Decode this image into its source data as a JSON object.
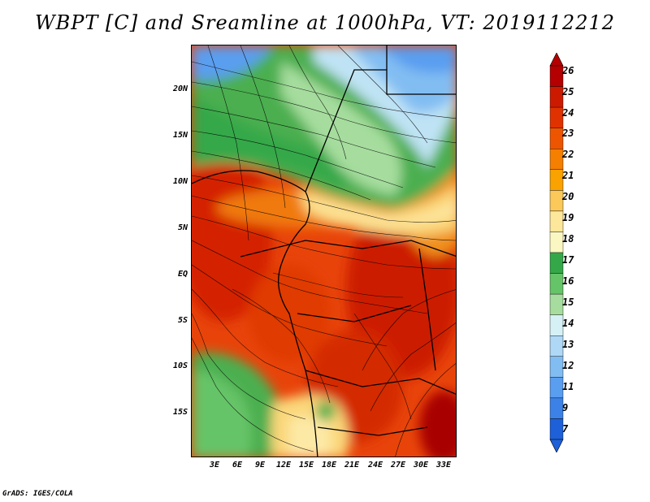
{
  "title": "WBPT [C] and Sreamline at 1000hPa, VT: 2019112212",
  "credit": "GrADS: IGES/COLA",
  "map": {
    "lat_labels": [
      "20N",
      "15N",
      "10N",
      "5N",
      "EQ",
      "5S",
      "10S",
      "15S"
    ],
    "lon_labels": [
      "3E",
      "6E",
      "9E",
      "12E",
      "15E",
      "18E",
      "21E",
      "24E",
      "27E",
      "30E",
      "33E"
    ]
  },
  "colorbar": {
    "labels": [
      "26",
      "25",
      "24",
      "23",
      "22",
      "21",
      "20",
      "19",
      "18",
      "17",
      "16",
      "15",
      "14",
      "13",
      "12",
      "11",
      "9",
      "7"
    ],
    "colors": [
      "#b40000",
      "#cc1a00",
      "#e03200",
      "#ee5500",
      "#f57f00",
      "#f9a200",
      "#fbc95a",
      "#fde79a",
      "#fbf7c2",
      "#34a848",
      "#66c468",
      "#a6dd9e",
      "#d6f1f6",
      "#aed8f6",
      "#82bdf2",
      "#5a9ef0",
      "#3c82e6",
      "#1e60d8"
    ]
  },
  "legend_colors": {
    "red_hot": "#d42a00",
    "orange": "#f07a10",
    "yellow": "#fce59a",
    "green": "#4caf50",
    "light_green": "#a6dd9e",
    "light_blue": "#bfe3f4",
    "blue": "#5a9ef0"
  }
}
